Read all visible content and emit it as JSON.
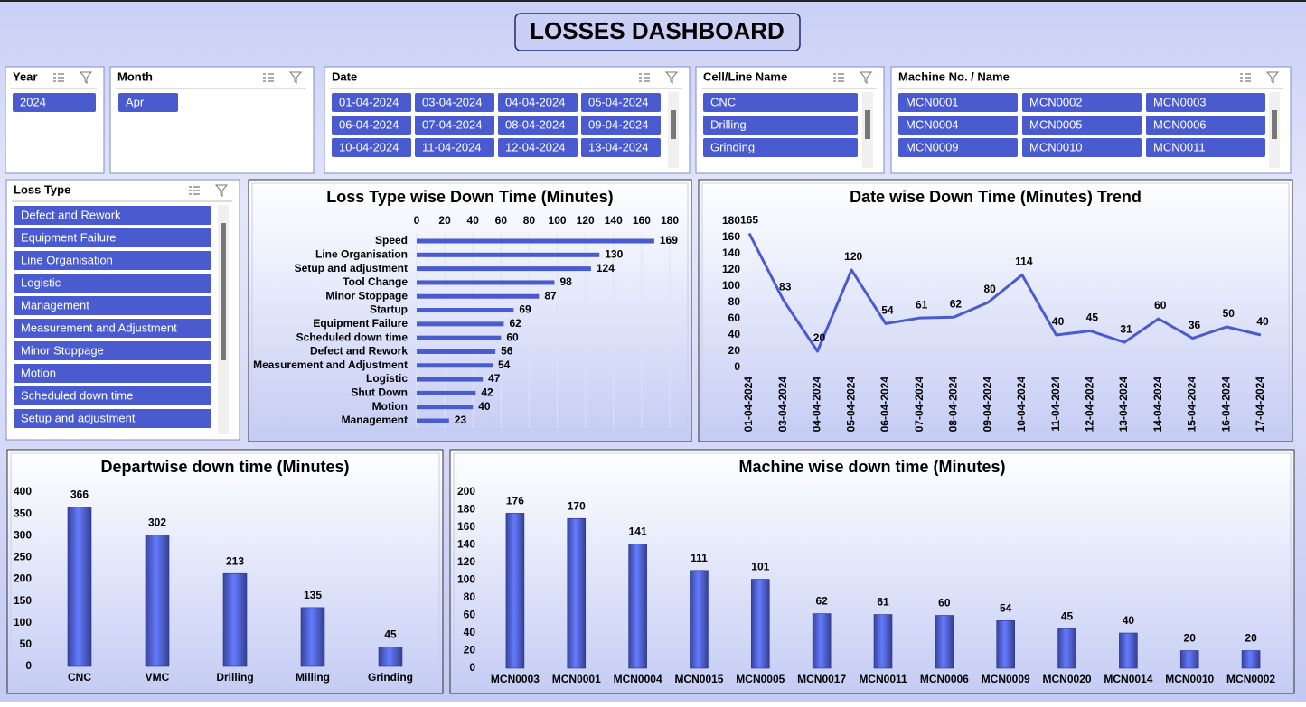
{
  "title": "LOSSES DASHBOARD",
  "slicers": [
    {
      "title": "Year",
      "items": [
        "2024"
      ]
    },
    {
      "title": "Month",
      "items": [
        "Apr"
      ]
    },
    {
      "title": "Date",
      "items": [
        "01-04-2024",
        "03-04-2024",
        "04-04-2024",
        "05-04-2024",
        "06-04-2024",
        "07-04-2024",
        "08-04-2024",
        "09-04-2024",
        "10-04-2024",
        "11-04-2024",
        "12-04-2024",
        "13-04-2024"
      ]
    },
    {
      "title": "Cell/Line Name",
      "items": [
        "CNC",
        "Drilling",
        "Grinding"
      ]
    },
    {
      "title": "Machine No. / Name",
      "items": [
        "MCN0001",
        "MCN0002",
        "MCN0003",
        "MCN0004",
        "MCN0005",
        "MCN0006",
        "MCN0009",
        "MCN0010",
        "MCN0011"
      ]
    },
    {
      "title": "Loss Type",
      "items": [
        "Defect and Rework",
        "Equipment Failure",
        "Line Organisation",
        "Logistic",
        "Management",
        "Measurement and Adjustment",
        "Minor Stoppage",
        "Motion",
        "Scheduled down time",
        "Setup and adjustment"
      ]
    }
  ],
  "chart_data": [
    {
      "type": "bar",
      "orientation": "horizontal",
      "title": "Loss Type wise Down Time (Minutes)",
      "color": "#4a5bd0",
      "grid": true,
      "categories": [
        "Speed",
        "Line Organisation",
        "Setup and adjustment",
        "Tool Change",
        "Minor Stoppage",
        "Startup",
        "Equipment Failure",
        "Scheduled down time",
        "Defect and Rework",
        "Measurement and Adjustment",
        "Logistic",
        "Shut Down",
        "Motion",
        "Management"
      ],
      "values": [
        169,
        130,
        124,
        98,
        87,
        69,
        62,
        60,
        56,
        54,
        47,
        42,
        40,
        23
      ],
      "xlim": [
        0,
        180
      ],
      "xticks": [
        0,
        20,
        40,
        60,
        80,
        100,
        120,
        140,
        160,
        180
      ]
    },
    {
      "type": "line",
      "title": "Date wise Down Time (Minutes) Trend",
      "color": "#4a5bd0",
      "grid": false,
      "categories": [
        "01-04-2024",
        "03-04-2024",
        "04-04-2024",
        "05-04-2024",
        "06-04-2024",
        "07-04-2024",
        "08-04-2024",
        "09-04-2024",
        "10-04-2024",
        "11-04-2024",
        "12-04-2024",
        "13-04-2024",
        "14-04-2024",
        "15-04-2024",
        "16-04-2024",
        "17-04-2024"
      ],
      "values": [
        165,
        83,
        20,
        120,
        54,
        61,
        62,
        80,
        114,
        40,
        45,
        31,
        60,
        36,
        50,
        40
      ],
      "ylim": [
        0,
        180
      ],
      "yticks": [
        0,
        20,
        40,
        60,
        80,
        100,
        120,
        140,
        160,
        180
      ]
    },
    {
      "type": "bar",
      "orientation": "vertical",
      "title": "Departwise down time (Minutes)",
      "color": "#4a5bd0",
      "grid": false,
      "categories": [
        "CNC",
        "VMC",
        "Drilling",
        "Milling",
        "Grinding"
      ],
      "values": [
        366,
        302,
        213,
        135,
        45
      ],
      "ylim": [
        0,
        400
      ],
      "yticks": [
        0,
        50,
        100,
        150,
        200,
        250,
        300,
        350,
        400
      ]
    },
    {
      "type": "bar",
      "orientation": "vertical",
      "title": "Machine wise down time (Minutes)",
      "color": "#4a5bd0",
      "grid": false,
      "categories": [
        "MCN0003",
        "MCN0001",
        "MCN0004",
        "MCN0015",
        "MCN0005",
        "MCN0017",
        "MCN0011",
        "MCN0006",
        "MCN0009",
        "MCN0020",
        "MCN0014",
        "MCN0010",
        "MCN0002"
      ],
      "values": [
        176,
        170,
        141,
        111,
        101,
        62,
        61,
        60,
        54,
        45,
        40,
        20,
        20
      ],
      "ylim": [
        0,
        200
      ],
      "yticks": [
        0,
        20,
        40,
        60,
        80,
        100,
        120,
        140,
        160,
        180,
        200
      ]
    }
  ]
}
